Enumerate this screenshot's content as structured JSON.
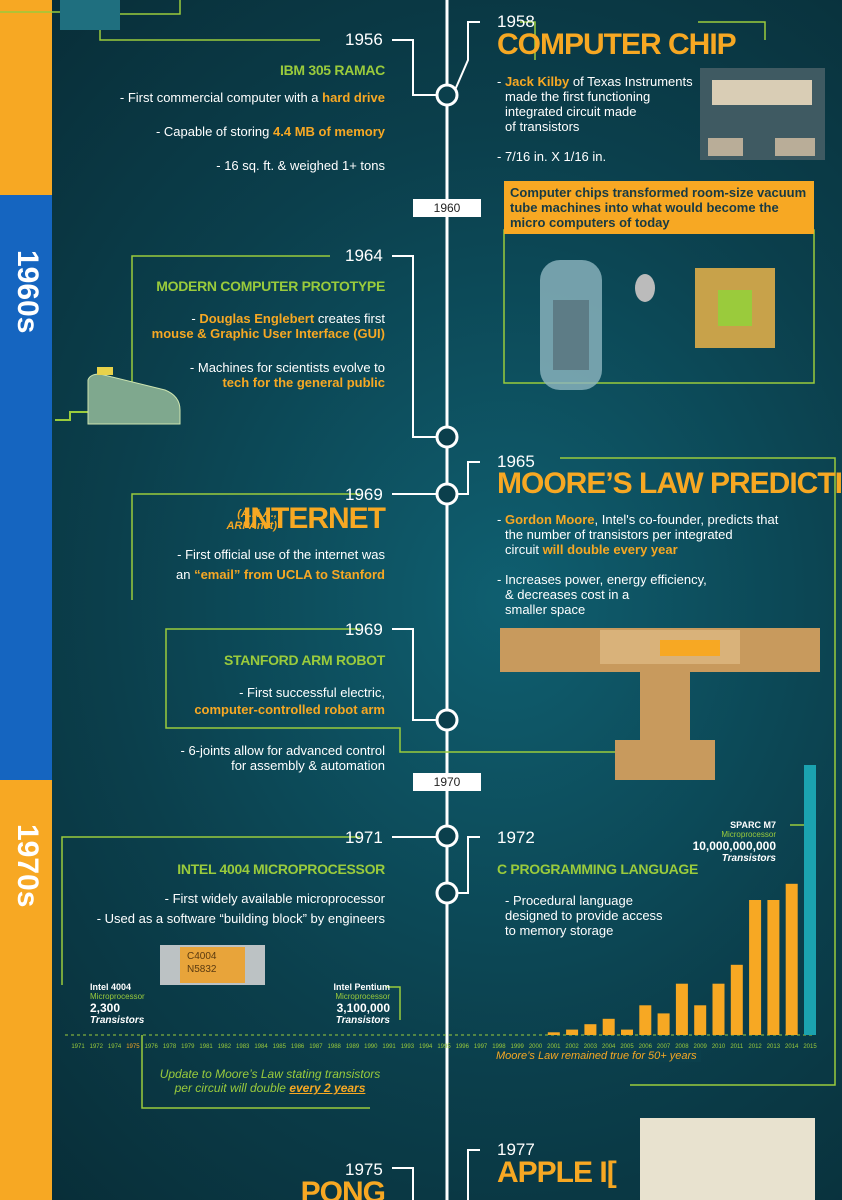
{
  "era_labels": [
    "1960s",
    "1970s"
  ],
  "decade_markers": [
    "1960",
    "1970"
  ],
  "events": [
    {
      "year": "1956",
      "title": "IBM 305 RAMAC",
      "lines": [
        [
          "- First commercial computer with a ",
          "hard drive"
        ],
        [
          "- Capable of storing ",
          "4.4 MB of memory"
        ],
        [
          "- 16 sq. ft. & weighed 1+ tons"
        ]
      ]
    },
    {
      "year": "1958",
      "title": "COMPUTER CHIP",
      "lines": [
        [
          "- ",
          "Jack Kilby",
          " of Texas Instruments"
        ],
        [
          "made the first functioning"
        ],
        [
          "integrated circuit made"
        ],
        [
          "of transistors"
        ],
        [
          "- 7/16 in. X 1/16 in."
        ]
      ],
      "callout": "Computer chips transformed room-size vacuum tube machines into what would become the micro computers of today"
    },
    {
      "year": "1964",
      "title": "MODERN COMPUTER PROTOTYPE",
      "lines": [
        [
          "- ",
          "Douglas Englebert",
          " creates first"
        ],
        [
          "mouse & Graphic User Interface (GUI)"
        ],
        [
          "- Machines for scientists evolve to"
        ],
        [
          "tech for the general public"
        ]
      ]
    },
    {
      "year": "1965",
      "title": "MOORE’S LAW PREDICTION",
      "lines": [
        [
          "- ",
          "Gordon Moore",
          ", Intel's co-founder, predicts that"
        ],
        [
          "the number of transistors per integrated"
        ],
        [
          "circuit ",
          "will double every year"
        ],
        [
          "- Increases power, energy efficiency,"
        ],
        [
          "& decreases cost in a"
        ],
        [
          "smaller space"
        ]
      ]
    },
    {
      "year": "1969",
      "aka": "(A.K.A., ARPAnet)",
      "title": "INTERNET",
      "lines": [
        [
          "- First official use of the internet  was"
        ],
        [
          "an ",
          "“email” from UCLA to Stanford"
        ]
      ]
    },
    {
      "year": "1969",
      "title": "STANFORD ARM ROBOT",
      "lines": [
        [
          "- First successful electric,"
        ],
        [
          "computer-controlled robot arm"
        ],
        [
          "- 6-joints allow for advanced control"
        ],
        [
          "for assembly & automation"
        ]
      ]
    },
    {
      "year": "1971",
      "title": "INTEL 4004 MICROPROCESSOR",
      "lines": [
        [
          "- First widely available microprocessor"
        ],
        [
          "- Used as a software “building block” by engineers"
        ]
      ],
      "chip_label": [
        "C4004",
        "N5832"
      ]
    },
    {
      "year": "1972",
      "title": "C PROGRAMMING LANGUAGE",
      "lines": [
        [
          "- Procedural language"
        ],
        [
          "designed to provide access"
        ],
        [
          "to memory storage"
        ]
      ]
    },
    {
      "year": "1975",
      "title": "PONG"
    },
    {
      "year": "1977",
      "title": "APPLE I["
    }
  ],
  "chips": [
    {
      "name": "Intel 4004",
      "kind": "Microprocessor",
      "count": "2,300",
      "unit": "Transistors"
    },
    {
      "name": "Intel Pentium",
      "kind": "Microprocessor",
      "count": "3,100,000",
      "unit": "Transistors"
    },
    {
      "name": "SPARC M7",
      "kind": "Microprocessor",
      "count": "10,000,000,000",
      "unit": "Transistors"
    }
  ],
  "moore_note": "Moore’s Law remained true for 50+ years",
  "update_note": [
    "Update to Moore’s Law stating transistors",
    "per circuit will double ",
    "every 2 years"
  ],
  "transistor_chart": {
    "type": "bar",
    "categories": [
      "1971",
      "1972",
      "1974",
      "1975",
      "1976",
      "1978",
      "1979",
      "1981",
      "1982",
      "1983",
      "1984",
      "1985",
      "1986",
      "1987",
      "1988",
      "1989",
      "1990",
      "1991",
      "1993",
      "1994",
      "1995",
      "1996",
      "1997",
      "1998",
      "1999",
      "2000",
      "2001",
      "2002",
      "2003",
      "2004",
      "2005",
      "2006",
      "2007",
      "2008",
      "2009",
      "2010",
      "2011",
      "2012",
      "2013",
      "2014",
      "2015"
    ],
    "values": [
      0,
      0,
      0,
      0,
      0,
      0,
      0,
      0,
      0,
      0,
      0,
      0,
      0,
      0,
      0,
      0,
      0,
      0,
      0,
      0,
      0,
      0,
      0,
      0,
      0,
      0,
      1,
      2,
      4,
      6,
      2,
      11,
      8,
      19,
      11,
      19,
      26,
      50,
      50,
      56,
      100
    ],
    "ylim": [
      0,
      100
    ],
    "color": "#f7a823",
    "last_color": "#1ba3b0"
  }
}
